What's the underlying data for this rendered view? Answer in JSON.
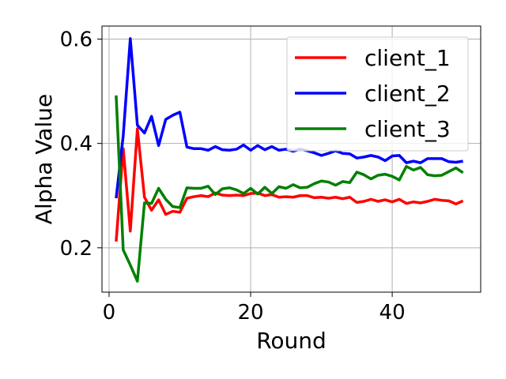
{
  "chart_data": {
    "type": "line",
    "title": "",
    "xlabel": "Round",
    "ylabel": "Alpha Value",
    "xlim": [
      -1,
      52.5
    ],
    "ylim": [
      0.115,
      0.625
    ],
    "xticks": [
      0,
      20,
      40
    ],
    "yticks": [
      0.2,
      0.4,
      0.6
    ],
    "xtick_labels": [
      "0",
      "20",
      "40"
    ],
    "ytick_labels": [
      "0.2",
      "0.4",
      "0.6"
    ],
    "grid": true,
    "legend_position": "top-right",
    "series": [
      {
        "name": "client_1",
        "color": "#ff0000",
        "x": [
          1,
          2,
          3,
          4,
          5,
          6,
          7,
          8,
          9,
          10,
          11,
          12,
          13,
          14,
          15,
          16,
          17,
          18,
          19,
          20,
          21,
          22,
          23,
          24,
          25,
          26,
          27,
          28,
          29,
          30,
          31,
          32,
          33,
          34,
          35,
          36,
          37,
          38,
          39,
          40,
          41,
          42,
          43,
          44,
          45,
          46,
          47,
          48,
          49,
          50
        ],
        "values": [
          0.212,
          0.39,
          0.232,
          0.428,
          0.297,
          0.272,
          0.292,
          0.264,
          0.27,
          0.268,
          0.295,
          0.298,
          0.3,
          0.298,
          0.305,
          0.301,
          0.3,
          0.301,
          0.3,
          0.304,
          0.305,
          0.3,
          0.302,
          0.297,
          0.298,
          0.297,
          0.3,
          0.3,
          0.296,
          0.297,
          0.295,
          0.297,
          0.294,
          0.297,
          0.287,
          0.289,
          0.293,
          0.289,
          0.292,
          0.288,
          0.293,
          0.285,
          0.288,
          0.286,
          0.289,
          0.293,
          0.291,
          0.29,
          0.284,
          0.29
        ]
      },
      {
        "name": "client_2",
        "color": "#0000ff",
        "x": [
          1,
          2,
          3,
          4,
          5,
          6,
          7,
          8,
          9,
          10,
          11,
          12,
          13,
          14,
          15,
          16,
          17,
          18,
          19,
          20,
          21,
          22,
          23,
          24,
          25,
          26,
          27,
          28,
          29,
          30,
          31,
          32,
          33,
          34,
          35,
          36,
          37,
          38,
          39,
          40,
          41,
          42,
          43,
          44,
          45,
          46,
          47,
          48,
          49,
          50
        ],
        "values": [
          0.295,
          0.415,
          0.601,
          0.435,
          0.42,
          0.452,
          0.396,
          0.446,
          0.454,
          0.46,
          0.393,
          0.39,
          0.39,
          0.387,
          0.394,
          0.388,
          0.387,
          0.389,
          0.397,
          0.387,
          0.396,
          0.388,
          0.394,
          0.387,
          0.389,
          0.385,
          0.389,
          0.386,
          0.382,
          0.377,
          0.381,
          0.386,
          0.381,
          0.38,
          0.372,
          0.374,
          0.377,
          0.374,
          0.367,
          0.376,
          0.377,
          0.363,
          0.366,
          0.363,
          0.371,
          0.371,
          0.371,
          0.365,
          0.364,
          0.366
        ]
      },
      {
        "name": "client_3",
        "color": "#008000",
        "x": [
          1,
          2,
          3,
          4,
          5,
          6,
          7,
          8,
          9,
          10,
          11,
          12,
          13,
          14,
          15,
          16,
          17,
          18,
          19,
          20,
          21,
          22,
          23,
          24,
          25,
          26,
          27,
          28,
          29,
          30,
          31,
          32,
          33,
          34,
          35,
          36,
          37,
          38,
          39,
          40,
          41,
          42,
          43,
          44,
          45,
          46,
          47,
          48,
          49,
          50
        ],
        "values": [
          0.492,
          0.196,
          0.167,
          0.136,
          0.286,
          0.285,
          0.314,
          0.293,
          0.279,
          0.277,
          0.315,
          0.314,
          0.314,
          0.318,
          0.302,
          0.313,
          0.315,
          0.311,
          0.304,
          0.314,
          0.303,
          0.316,
          0.304,
          0.317,
          0.314,
          0.321,
          0.315,
          0.316,
          0.323,
          0.328,
          0.326,
          0.32,
          0.327,
          0.325,
          0.345,
          0.34,
          0.332,
          0.339,
          0.341,
          0.337,
          0.33,
          0.356,
          0.349,
          0.354,
          0.34,
          0.338,
          0.339,
          0.346,
          0.353,
          0.344
        ]
      }
    ]
  }
}
